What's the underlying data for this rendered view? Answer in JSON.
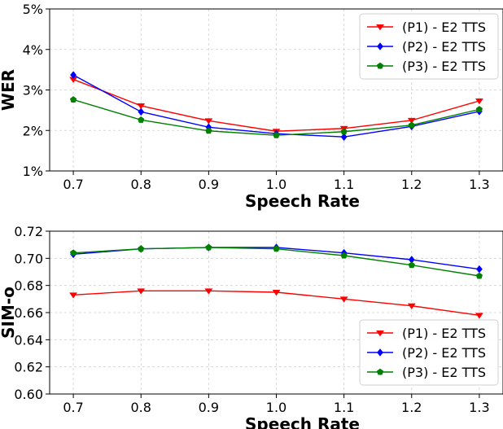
{
  "chart_data": [
    {
      "type": "line",
      "xlabel": "Speech Rate",
      "ylabel": "WER",
      "x": [
        0.7,
        0.8,
        0.9,
        1.0,
        1.1,
        1.2,
        1.3
      ],
      "x_tick_labels": [
        "0.7",
        "0.8",
        "0.9",
        "1.0",
        "1.1",
        "1.2",
        "1.3"
      ],
      "xlim": [
        0.665,
        1.335
      ],
      "ylim": [
        1,
        5
      ],
      "y_ticks": [
        1,
        2,
        3,
        4,
        5
      ],
      "y_tick_labels": [
        "1%",
        "2%",
        "3%",
        "4%",
        "5%"
      ],
      "grid": true,
      "legend_position": "top-right",
      "series": [
        {
          "name": "(P1) - E2 TTS",
          "color": "#ff0000",
          "marker": "triangle-down",
          "values": [
            3.26,
            2.61,
            2.24,
            1.98,
            2.05,
            2.25,
            2.73
          ]
        },
        {
          "name": "(P2) - E2 TTS",
          "color": "#0000ff",
          "marker": "diamond",
          "values": [
            3.37,
            2.46,
            2.08,
            1.92,
            1.84,
            2.1,
            2.47
          ]
        },
        {
          "name": "(P3) - E2 TTS",
          "color": "#008000",
          "marker": "pentagon",
          "values": [
            2.76,
            2.26,
            1.99,
            1.88,
            1.97,
            2.13,
            2.52
          ]
        }
      ]
    },
    {
      "type": "line",
      "xlabel": "Speech Rate",
      "ylabel": "SIM-o",
      "x": [
        0.7,
        0.8,
        0.9,
        1.0,
        1.1,
        1.2,
        1.3
      ],
      "x_tick_labels": [
        "0.7",
        "0.8",
        "0.9",
        "1.0",
        "1.1",
        "1.2",
        "1.3"
      ],
      "xlim": [
        0.665,
        1.335
      ],
      "ylim": [
        0.6,
        0.72
      ],
      "y_ticks": [
        0.6,
        0.62,
        0.64,
        0.66,
        0.68,
        0.7,
        0.72
      ],
      "y_tick_labels": [
        "0.60",
        "0.62",
        "0.64",
        "0.66",
        "0.68",
        "0.70",
        "0.72"
      ],
      "grid": true,
      "legend_position": "bottom-right",
      "series": [
        {
          "name": "(P1) - E2 TTS",
          "color": "#ff0000",
          "marker": "triangle-down",
          "values": [
            0.673,
            0.676,
            0.676,
            0.675,
            0.67,
            0.665,
            0.658
          ]
        },
        {
          "name": "(P2) - E2 TTS",
          "color": "#0000ff",
          "marker": "diamond",
          "values": [
            0.703,
            0.707,
            0.708,
            0.708,
            0.704,
            0.699,
            0.692
          ]
        },
        {
          "name": "(P3) - E2 TTS",
          "color": "#008000",
          "marker": "pentagon",
          "values": [
            0.704,
            0.707,
            0.708,
            0.707,
            0.702,
            0.695,
            0.687
          ]
        }
      ]
    }
  ]
}
